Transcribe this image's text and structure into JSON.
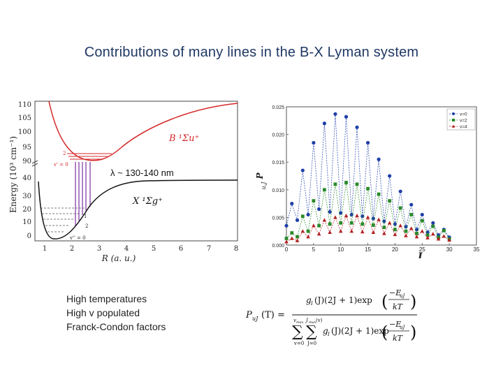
{
  "slide": {
    "title": "Contributions of many lines in the B-X Lyman system",
    "notes": [
      "High temperatures",
      "High v populated",
      "Franck-Condon factors"
    ]
  },
  "potential_diagram": {
    "ylabel": "Energy (10³ cm⁻¹)",
    "xlabel": "R (a. u.)",
    "x_ticks": [
      "1",
      "2",
      "3",
      "4",
      "5",
      "6",
      "7",
      "8"
    ],
    "y_ticks_upper": [
      "110",
      "105",
      "100",
      "95",
      "90"
    ],
    "y_ticks_lower": [
      "40",
      "30",
      "20",
      "10",
      "0"
    ],
    "upper_state": "B ¹Σu⁺",
    "lower_state": "X ¹Σg⁺",
    "upper_levels": [
      "2",
      "v' = 0"
    ],
    "lower_levels": [
      "2",
      "1",
      "v'' = 0"
    ],
    "wavelength_label": "λ ~ 130-140 nm",
    "colors": {
      "upper": "#d62728",
      "lower": "#111111",
      "transitions": "#7b2fa0"
    }
  },
  "chart_data": {
    "type": "scatter",
    "xlabel": "J",
    "ylabel": "P",
    "ylabel_sub": "u,J",
    "xlim": [
      0,
      35
    ],
    "ylim": [
      0,
      0.025
    ],
    "x_ticks": [
      0,
      5,
      10,
      15,
      20,
      25,
      30,
      35
    ],
    "y_ticks": [
      "0.000",
      "0.005",
      "0.010",
      "0.015",
      "0.020",
      "0.025"
    ],
    "legend_position": "top-right",
    "series": [
      {
        "name": "v=0",
        "color": "#1f3fa8",
        "marker": "circle",
        "x": [
          0,
          1,
          2,
          3,
          4,
          5,
          6,
          7,
          8,
          9,
          10,
          11,
          12,
          13,
          14,
          15,
          16,
          17,
          18,
          19,
          20,
          21,
          22,
          23,
          24,
          25,
          26,
          27,
          28,
          29,
          30
        ],
        "y": [
          0.0035,
          0.0075,
          0.0045,
          0.0135,
          0.0055,
          0.0185,
          0.0065,
          0.022,
          0.006,
          0.0237,
          0.0058,
          0.0232,
          0.0055,
          0.0213,
          0.0052,
          0.0185,
          0.0048,
          0.0155,
          0.0043,
          0.0125,
          0.0038,
          0.0097,
          0.0033,
          0.0073,
          0.0028,
          0.0055,
          0.0023,
          0.004,
          0.0018,
          0.0028,
          0.0014
        ]
      },
      {
        "name": "v=2",
        "color": "#2a8a2a",
        "marker": "square",
        "x": [
          0,
          1,
          2,
          3,
          4,
          5,
          6,
          7,
          8,
          9,
          10,
          11,
          12,
          13,
          14,
          15,
          16,
          17,
          18,
          19,
          20,
          21,
          22,
          23,
          24,
          25,
          26,
          27,
          28,
          29,
          30
        ],
        "y": [
          0.0012,
          0.0022,
          0.0015,
          0.0052,
          0.0025,
          0.008,
          0.0035,
          0.01,
          0.0038,
          0.011,
          0.004,
          0.0113,
          0.004,
          0.011,
          0.0038,
          0.0102,
          0.0036,
          0.0092,
          0.0032,
          0.008,
          0.0028,
          0.0067,
          0.0025,
          0.0055,
          0.0021,
          0.0044,
          0.0018,
          0.0034,
          0.0014,
          0.0026,
          0.0011
        ]
      },
      {
        "name": "v=4",
        "color": "#b22020",
        "marker": "triangle",
        "x": [
          0,
          1,
          2,
          3,
          4,
          5,
          6,
          7,
          8,
          9,
          10,
          11,
          12,
          13,
          14,
          15,
          16,
          17,
          18,
          19,
          20,
          21,
          22,
          23,
          24,
          25,
          26,
          27,
          28,
          29,
          30
        ],
        "y": [
          0.0006,
          0.0012,
          0.0008,
          0.0025,
          0.0015,
          0.0035,
          0.002,
          0.0045,
          0.0023,
          0.005,
          0.0025,
          0.0053,
          0.0025,
          0.0053,
          0.0024,
          0.005,
          0.0023,
          0.0046,
          0.0021,
          0.004,
          0.0019,
          0.0035,
          0.0017,
          0.003,
          0.0015,
          0.0025,
          0.0013,
          0.002,
          0.0011,
          0.0016,
          0.0009
        ]
      }
    ]
  },
  "formula": {
    "lhs": "P",
    "lhs_sub": "uJ",
    "lhs_arg": "(T) =",
    "numerator": "g",
    "num_sub": "I",
    "num_rest": "(J)(2J + 1)exp",
    "exp_num": "−E",
    "exp_num_sub": "uJ",
    "exp_den": "kT",
    "sum1_top": "v",
    "sum1_top_sub": "max",
    "sum1_bottom": "v=0",
    "sum2_top": "J",
    "sum2_top_sub": "max",
    "sum2_top_arg": "(v)",
    "sum2_bottom": "J=0",
    "sigma": "∑",
    "den_g": "g",
    "den_sub": "I",
    "den_rest": "(J)(2J + 1)exp",
    "den_exp_num": "−E",
    "den_exp_num_sub": "uJ",
    "den_exp_den": "kT"
  }
}
